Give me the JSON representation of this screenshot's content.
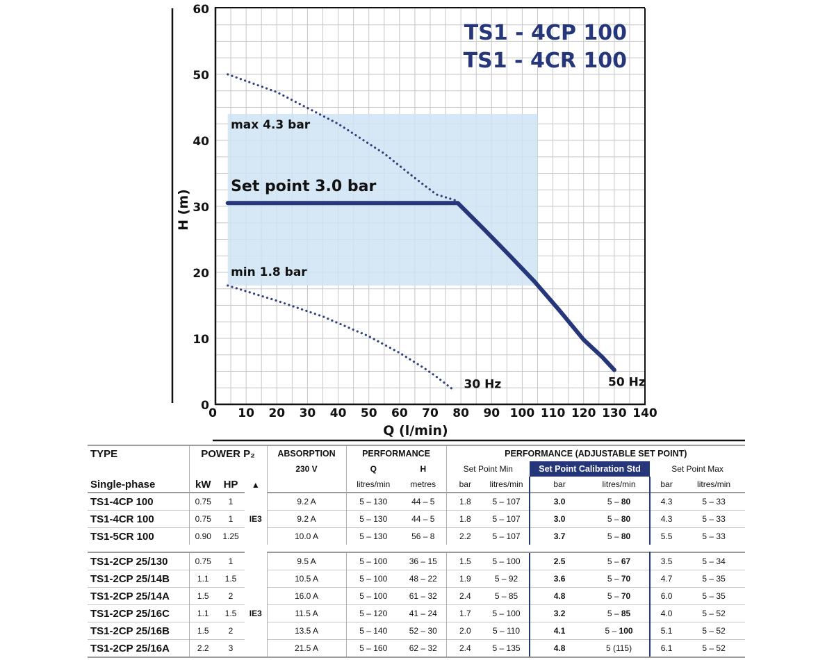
{
  "chart_data": {
    "type": "line",
    "title": [
      "TS1 - 4CP 100",
      "TS1 - 4CR 100"
    ],
    "xlabel": "Q (l/min)",
    "ylabel": "H (m)",
    "xlim": [
      0,
      140
    ],
    "ylim": [
      0,
      60
    ],
    "xticks": [
      "0",
      "10",
      "20",
      "30",
      "40",
      "50",
      "60",
      "70",
      "80",
      "90",
      "100",
      "110",
      "120",
      "130",
      "140"
    ],
    "yticks": [
      "0",
      "10",
      "20",
      "30",
      "40",
      "50",
      "60"
    ],
    "grid": true,
    "colors": {
      "curve": "#26367a",
      "band": "#cfe3f5",
      "dotted": "#2f3f7f",
      "grid": "#c6c6c6"
    },
    "series": [
      {
        "name": "50 Hz",
        "style": "solid",
        "x": [
          4,
          79,
          88,
          96,
          104,
          112,
          120,
          126,
          130
        ],
        "y": [
          30.5,
          30.5,
          26.3,
          22.5,
          18.6,
          14.3,
          9.8,
          7.2,
          5.2
        ]
      },
      {
        "name": "",
        "style": "dotted",
        "x": [
          4,
          20,
          40,
          55,
          65,
          72,
          79
        ],
        "y": [
          50,
          47.3,
          42.5,
          38.0,
          34.3,
          31.8,
          30.8
        ]
      },
      {
        "name": "30 Hz",
        "style": "dotted",
        "x": [
          4,
          20,
          35,
          50,
          60,
          68,
          72,
          77
        ],
        "y": [
          18,
          15.7,
          13.3,
          10.3,
          7.8,
          5.5,
          4.2,
          2.4
        ]
      }
    ],
    "band": {
      "x_range": [
        4,
        105
      ],
      "y_range": [
        18,
        44
      ]
    },
    "annotations": [
      {
        "text": "max 4.3 bar",
        "x": 5,
        "y": 41.8
      },
      {
        "text": "Set point 3.0 bar",
        "x": 5,
        "y": 32.3
      },
      {
        "text": "min 1.8 bar",
        "x": 5,
        "y": 19.5
      },
      {
        "text": "30 Hz",
        "x": 81,
        "y": 2.5
      },
      {
        "text": "50 Hz",
        "x": 128,
        "y": 2.8
      }
    ]
  },
  "table": {
    "head": {
      "type": "TYPE",
      "power": "POWER P₂",
      "absorption": "ABSORPTION",
      "performance": "PERFORMANCE",
      "performance_adj": "PERFORMANCE (ADJUSTABLE SET POINT)",
      "v230": "230 V",
      "q": "Q",
      "h": "H",
      "sp_min": "Set Point Min",
      "sp_cal": "Set Point Calibration Std",
      "sp_max": "Set Point Max",
      "single_phase": "Single-phase",
      "kw": "kW",
      "hp": "HP",
      "triangle": "▲",
      "litres_min": "litres/min",
      "metres": "metres",
      "bar": "bar"
    },
    "ie3": "IE3",
    "group1": [
      [
        "TS1-4CP 100",
        "0.75",
        "1",
        "9.2 A",
        "5 – 130",
        "44 – 5",
        "1.8",
        "5 – 107",
        "3.0",
        "5 – ",
        "80",
        "4.3",
        "5 – 33"
      ],
      [
        "TS1-4CR 100",
        "0.75",
        "1",
        "9.2 A",
        "5 – 130",
        "44 – 5",
        "1.8",
        "5 – 107",
        "3.0",
        "5 – ",
        "80",
        "4.3",
        "5 – 33"
      ],
      [
        "TS1-5CR 100",
        "0.90",
        "1.25",
        "10.0 A",
        "5 – 130",
        "56 – 8",
        "2.2",
        "5 – 107",
        "3.7",
        "5 – ",
        "80",
        "5.5",
        "5 – 33"
      ]
    ],
    "group2": [
      [
        "TS1-2CP 25/130",
        "0.75",
        "1",
        "9.5 A",
        "5 – 100",
        "36 – 15",
        "1.5",
        "5 – 100",
        "2.5",
        "5 – ",
        "67",
        "3.5",
        "5 – 34"
      ],
      [
        "TS1-2CP 25/14B",
        "1.1",
        "1.5",
        "10.5 A",
        "5 – 100",
        "48 – 22",
        "1.9",
        "5 – 92",
        "3.6",
        "5 – ",
        "70",
        "4.7",
        "5 – 35"
      ],
      [
        "TS1-2CP 25/14A",
        "1.5",
        "2",
        "16.0 A",
        "5 – 100",
        "61 – 32",
        "2.4",
        "5 – 85",
        "4.8",
        "5 – ",
        "70",
        "6.0",
        "5 – 35"
      ],
      [
        "TS1-2CP 25/16C",
        "1.1",
        "1.5",
        "11.5 A",
        "5 – 120",
        "41 – 24",
        "1.7",
        "5 – 100",
        "3.2",
        "5 – ",
        "85",
        "4.0",
        "5 – 52"
      ],
      [
        "TS1-2CP 25/16B",
        "1.5",
        "2",
        "13.5 A",
        "5 – 140",
        "52 – 30",
        "2.0",
        "5 – 110",
        "4.1",
        "5 – ",
        "100",
        "5.1",
        "5 – 52"
      ],
      [
        "TS1-2CP 25/16A",
        "2.2",
        "3",
        "21.5 A",
        "5 – 160",
        "62 – 32",
        "2.4",
        "5 – 135",
        "4.8",
        "5 (115)",
        "",
        "6.1",
        "5 – 52"
      ]
    ]
  }
}
